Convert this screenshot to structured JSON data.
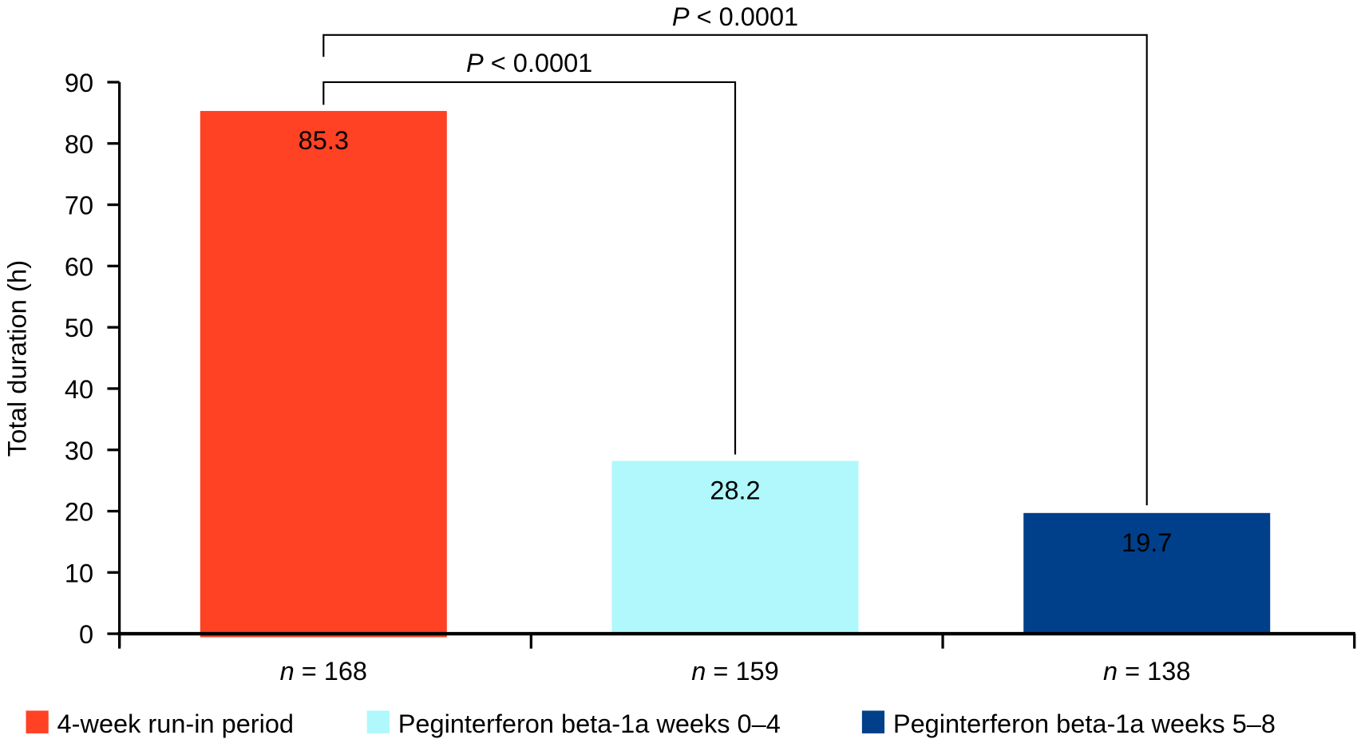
{
  "chart_data": {
    "type": "bar",
    "title": "",
    "xlabel": "",
    "ylabel": "Total duration (h)",
    "ylim": [
      0,
      90
    ],
    "yticks": [
      0,
      10,
      20,
      30,
      40,
      50,
      60,
      70,
      80,
      90
    ],
    "grid": false,
    "categories": [
      "n = 168",
      "n = 159",
      "n = 138"
    ],
    "category_n": [
      "168",
      "159",
      "138"
    ],
    "category_prefix": "n",
    "values": [
      85.3,
      28.2,
      19.7
    ],
    "value_labels": [
      "85.3",
      "28.2",
      "19.7"
    ],
    "series_names": [
      "4-week run-in period",
      "Peginterferon beta-1a weeks 0–4",
      "Peginterferon beta-1a weeks 5–8"
    ],
    "colors": [
      "#ff4124",
      "#b0f8fb",
      "#003f8a"
    ],
    "label_colors": [
      "#ffffff",
      "#000000",
      "#ffffff"
    ],
    "legend_position": "bottom",
    "annotations": [
      {
        "from": 0,
        "to": 2,
        "italic": "P",
        "text": " < 0.0001"
      },
      {
        "from": 0,
        "to": 1,
        "italic": "P",
        "text": " < 0.0001"
      }
    ]
  }
}
